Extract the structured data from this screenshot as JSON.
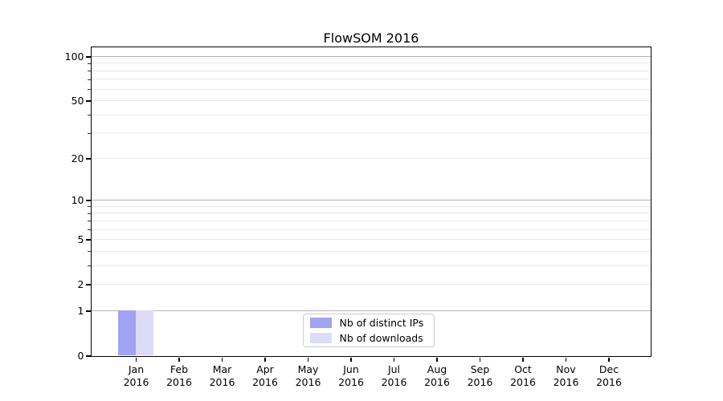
{
  "chart_data": {
    "type": "bar",
    "title": "FlowSOM 2016",
    "x_categories": [
      {
        "month": "Jan",
        "year": "2016"
      },
      {
        "month": "Feb",
        "year": "2016"
      },
      {
        "month": "Mar",
        "year": "2016"
      },
      {
        "month": "Apr",
        "year": "2016"
      },
      {
        "month": "May",
        "year": "2016"
      },
      {
        "month": "Jun",
        "year": "2016"
      },
      {
        "month": "Jul",
        "year": "2016"
      },
      {
        "month": "Aug",
        "year": "2016"
      },
      {
        "month": "Sep",
        "year": "2016"
      },
      {
        "month": "Oct",
        "year": "2016"
      },
      {
        "month": "Nov",
        "year": "2016"
      },
      {
        "month": "Dec",
        "year": "2016"
      }
    ],
    "series": [
      {
        "name": "Nb of distinct IPs",
        "color": "#a2a2f2",
        "values": [
          1,
          0,
          0,
          0,
          0,
          0,
          0,
          0,
          0,
          0,
          0,
          0
        ]
      },
      {
        "name": "Nb of downloads",
        "color": "#dcdcf8",
        "values": [
          1,
          0,
          0,
          0,
          0,
          0,
          0,
          0,
          0,
          0,
          0,
          0
        ]
      }
    ],
    "y_axis": {
      "scale": "log1p",
      "tick_values": [
        0,
        1,
        2,
        5,
        10,
        20,
        50,
        100
      ],
      "major_grid_values": [
        1,
        10,
        100
      ],
      "minor_grid_values": [
        2,
        3,
        4,
        5,
        6,
        7,
        8,
        9,
        20,
        30,
        40,
        50,
        60,
        70,
        80,
        90
      ],
      "top_value": 116
    },
    "legend": {
      "position": "lower-center"
    },
    "grid": true,
    "colors": {
      "major_grid": "#b3b3b3",
      "minor_grid": "#e8e8e8",
      "spine": "#000000",
      "text": "#000000",
      "legend_border": "#cccccc",
      "background": "#ffffff"
    }
  }
}
